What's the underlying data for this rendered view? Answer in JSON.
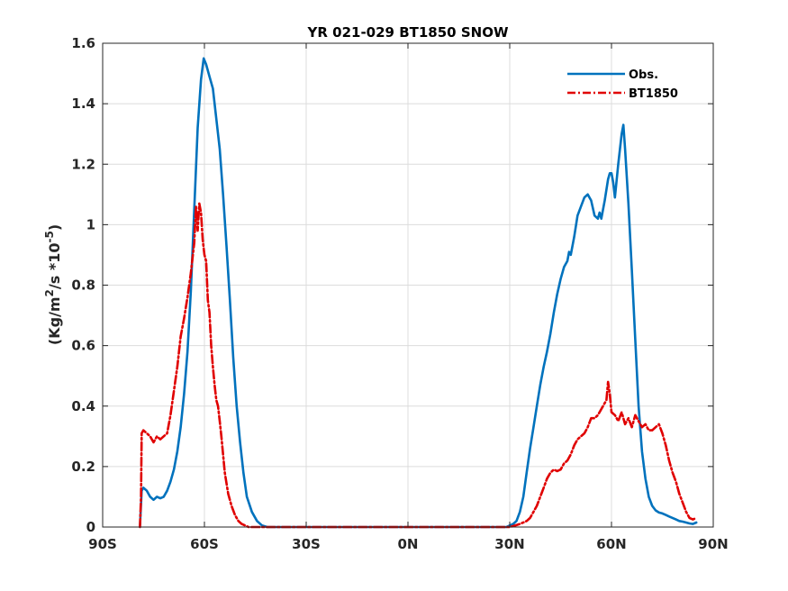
{
  "chart_data": {
    "type": "line",
    "title": "YR 021-029 BT1850 SNOW",
    "ylabel": "(Kg/m^2/s *10^-5)",
    "ylabel_parts": {
      "prefix": "(Kg/m",
      "sup1": "2",
      "mid": "/s *10",
      "sup2": "-5",
      "suffix": ")"
    },
    "xlabel": "",
    "xlim": [
      -90,
      90
    ],
    "ylim": [
      0,
      1.6
    ],
    "x_ticks": [
      -90,
      -60,
      -30,
      0,
      30,
      60,
      90
    ],
    "x_tick_labels": [
      "90S",
      "60S",
      "30S",
      "0N",
      "30N",
      "60N",
      "90N"
    ],
    "y_ticks": [
      0,
      0.2,
      0.4,
      0.6,
      0.8,
      1.0,
      1.2,
      1.4,
      1.6
    ],
    "y_tick_labels": [
      "0",
      "0.2",
      "0.4",
      "0.6",
      "0.8",
      "1",
      "1.2",
      "1.4",
      "1.6"
    ],
    "grid": true,
    "legend_position": "top-right",
    "series": [
      {
        "name": "Obs.",
        "color": "#0072BD",
        "style": "solid",
        "points": [
          [
            -79,
            0.0
          ],
          [
            -78.5,
            0.12
          ],
          [
            -78,
            0.13
          ],
          [
            -77,
            0.12
          ],
          [
            -76,
            0.1
          ],
          [
            -75,
            0.09
          ],
          [
            -74,
            0.1
          ],
          [
            -73,
            0.095
          ],
          [
            -72,
            0.1
          ],
          [
            -71,
            0.12
          ],
          [
            -70,
            0.15
          ],
          [
            -69,
            0.19
          ],
          [
            -68,
            0.25
          ],
          [
            -67,
            0.33
          ],
          [
            -66,
            0.44
          ],
          [
            -65,
            0.58
          ],
          [
            -64,
            0.78
          ],
          [
            -63,
            1.05
          ],
          [
            -62,
            1.32
          ],
          [
            -61,
            1.48
          ],
          [
            -60.2,
            1.55
          ],
          [
            -59.5,
            1.53
          ],
          [
            -58.5,
            1.49
          ],
          [
            -57.5,
            1.45
          ],
          [
            -56.5,
            1.35
          ],
          [
            -55.5,
            1.25
          ],
          [
            -54.5,
            1.1
          ],
          [
            -53.5,
            0.93
          ],
          [
            -52.5,
            0.75
          ],
          [
            -51.5,
            0.56
          ],
          [
            -50.5,
            0.4
          ],
          [
            -49.5,
            0.28
          ],
          [
            -48.5,
            0.18
          ],
          [
            -47.5,
            0.1
          ],
          [
            -46,
            0.05
          ],
          [
            -44.5,
            0.02
          ],
          [
            -43,
            0.005
          ],
          [
            -41.5,
            0.0
          ],
          [
            -30,
            0.0
          ],
          [
            0,
            0.0
          ],
          [
            29,
            0.0
          ],
          [
            30,
            0.005
          ],
          [
            31,
            0.01
          ],
          [
            32,
            0.02
          ],
          [
            33,
            0.05
          ],
          [
            34,
            0.1
          ],
          [
            35,
            0.18
          ],
          [
            36,
            0.26
          ],
          [
            37,
            0.33
          ],
          [
            38,
            0.4
          ],
          [
            39,
            0.47
          ],
          [
            40,
            0.53
          ],
          [
            41,
            0.58
          ],
          [
            42,
            0.64
          ],
          [
            43,
            0.71
          ],
          [
            44,
            0.77
          ],
          [
            45,
            0.82
          ],
          [
            46,
            0.86
          ],
          [
            47,
            0.88
          ],
          [
            47.5,
            0.91
          ],
          [
            48,
            0.9
          ],
          [
            49,
            0.96
          ],
          [
            50,
            1.03
          ],
          [
            51,
            1.06
          ],
          [
            52,
            1.09
          ],
          [
            53,
            1.1
          ],
          [
            54,
            1.08
          ],
          [
            55,
            1.03
          ],
          [
            56,
            1.02
          ],
          [
            56.5,
            1.04
          ],
          [
            57,
            1.02
          ],
          [
            58,
            1.08
          ],
          [
            59,
            1.15
          ],
          [
            59.5,
            1.17
          ],
          [
            60,
            1.17
          ],
          [
            60.5,
            1.14
          ],
          [
            61,
            1.09
          ],
          [
            62,
            1.2
          ],
          [
            63,
            1.3
          ],
          [
            63.5,
            1.33
          ],
          [
            64,
            1.25
          ],
          [
            65,
            1.07
          ],
          [
            66,
            0.85
          ],
          [
            67,
            0.62
          ],
          [
            68,
            0.4
          ],
          [
            69,
            0.25
          ],
          [
            70,
            0.16
          ],
          [
            71,
            0.1
          ],
          [
            72,
            0.07
          ],
          [
            73,
            0.055
          ],
          [
            74,
            0.048
          ],
          [
            75,
            0.045
          ],
          [
            76,
            0.04
          ],
          [
            77,
            0.035
          ],
          [
            78,
            0.03
          ],
          [
            79,
            0.025
          ],
          [
            80,
            0.02
          ],
          [
            81,
            0.018
          ],
          [
            82,
            0.015
          ],
          [
            83,
            0.012
          ],
          [
            84,
            0.01
          ],
          [
            85,
            0.015
          ]
        ]
      },
      {
        "name": "BT1850",
        "color": "#E00000",
        "style": "dashed",
        "points": [
          [
            -79,
            0.0
          ],
          [
            -78.7,
            0.1
          ],
          [
            -78.5,
            0.31
          ],
          [
            -78,
            0.32
          ],
          [
            -77,
            0.31
          ],
          [
            -76,
            0.3
          ],
          [
            -75,
            0.28
          ],
          [
            -74,
            0.3
          ],
          [
            -73,
            0.29
          ],
          [
            -72,
            0.3
          ],
          [
            -71,
            0.31
          ],
          [
            -70,
            0.37
          ],
          [
            -69,
            0.45
          ],
          [
            -68,
            0.53
          ],
          [
            -67,
            0.63
          ],
          [
            -66,
            0.69
          ],
          [
            -65,
            0.76
          ],
          [
            -64,
            0.84
          ],
          [
            -63,
            0.94
          ],
          [
            -62.5,
            1.06
          ],
          [
            -62,
            0.98
          ],
          [
            -61.5,
            1.07
          ],
          [
            -61,
            1.04
          ],
          [
            -60.5,
            0.95
          ],
          [
            -60,
            0.9
          ],
          [
            -59.5,
            0.88
          ],
          [
            -59,
            0.75
          ],
          [
            -58.5,
            0.71
          ],
          [
            -58,
            0.6
          ],
          [
            -57.5,
            0.53
          ],
          [
            -57,
            0.47
          ],
          [
            -56.5,
            0.42
          ],
          [
            -56,
            0.4
          ],
          [
            -55.5,
            0.35
          ],
          [
            -55,
            0.3
          ],
          [
            -54.5,
            0.24
          ],
          [
            -54,
            0.18
          ],
          [
            -53,
            0.11
          ],
          [
            -52,
            0.07
          ],
          [
            -51,
            0.04
          ],
          [
            -50,
            0.02
          ],
          [
            -49,
            0.01
          ],
          [
            -48,
            0.005
          ],
          [
            -47,
            0.0
          ],
          [
            0,
            0.0
          ],
          [
            30,
            0.0
          ],
          [
            31,
            0.003
          ],
          [
            33,
            0.01
          ],
          [
            35,
            0.02
          ],
          [
            36,
            0.03
          ],
          [
            37,
            0.05
          ],
          [
            38,
            0.07
          ],
          [
            39,
            0.1
          ],
          [
            40,
            0.13
          ],
          [
            41,
            0.16
          ],
          [
            42,
            0.18
          ],
          [
            43,
            0.19
          ],
          [
            44,
            0.185
          ],
          [
            45,
            0.19
          ],
          [
            46,
            0.21
          ],
          [
            47,
            0.22
          ],
          [
            48,
            0.24
          ],
          [
            49,
            0.27
          ],
          [
            50,
            0.29
          ],
          [
            51,
            0.3
          ],
          [
            52,
            0.31
          ],
          [
            53,
            0.33
          ],
          [
            54,
            0.36
          ],
          [
            55,
            0.36
          ],
          [
            56,
            0.37
          ],
          [
            57,
            0.39
          ],
          [
            58,
            0.41
          ],
          [
            58.5,
            0.42
          ],
          [
            59,
            0.48
          ],
          [
            59.5,
            0.44
          ],
          [
            60,
            0.38
          ],
          [
            61,
            0.37
          ],
          [
            62,
            0.35
          ],
          [
            63,
            0.38
          ],
          [
            64,
            0.34
          ],
          [
            65,
            0.36
          ],
          [
            66,
            0.33
          ],
          [
            67,
            0.37
          ],
          [
            68,
            0.35
          ],
          [
            69,
            0.33
          ],
          [
            70,
            0.34
          ],
          [
            71,
            0.32
          ],
          [
            72,
            0.32
          ],
          [
            73,
            0.33
          ],
          [
            74,
            0.34
          ],
          [
            75,
            0.31
          ],
          [
            76,
            0.27
          ],
          [
            77,
            0.22
          ],
          [
            78,
            0.18
          ],
          [
            79,
            0.15
          ],
          [
            80,
            0.11
          ],
          [
            81,
            0.08
          ],
          [
            82,
            0.05
          ],
          [
            83,
            0.03
          ],
          [
            84,
            0.025
          ],
          [
            85,
            0.03
          ]
        ]
      }
    ]
  }
}
